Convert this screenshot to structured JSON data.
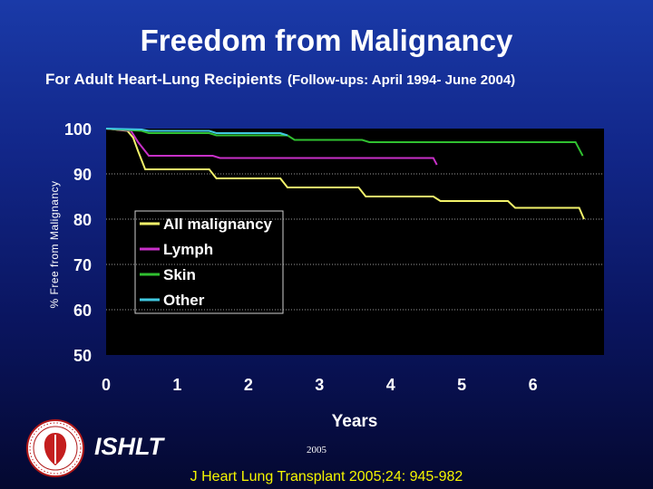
{
  "header": {
    "title": "Freedom from Malignancy",
    "subtitle": "For Adult Heart-Lung Recipients",
    "subtitle_note": "(Follow-ups: April 1994- June 2004)"
  },
  "footer": {
    "org": "ISHLT",
    "year": "2005",
    "citation": "J Heart Lung Transplant 2005;24: 945-982"
  },
  "chart_data": {
    "type": "line",
    "title": "Freedom from Malignancy",
    "xlabel": "Years",
    "ylabel": "% Free from Malignancy",
    "xlim": [
      0,
      7
    ],
    "ylim": [
      50,
      100
    ],
    "xticks": [
      0,
      1,
      2,
      3,
      4,
      5,
      6
    ],
    "yticks": [
      50,
      60,
      70,
      80,
      90,
      100
    ],
    "grid": "horizontal dotted",
    "legend": "inside left, middle",
    "background": "#000000",
    "series": [
      {
        "name": "All malignancy",
        "color": "#f2f26a",
        "step": true,
        "points": [
          [
            0,
            100
          ],
          [
            0.3,
            99.5
          ],
          [
            0.38,
            98
          ],
          [
            0.45,
            95
          ],
          [
            0.55,
            91
          ],
          [
            1.45,
            91
          ],
          [
            1.55,
            89
          ],
          [
            2.45,
            89
          ],
          [
            2.55,
            87
          ],
          [
            3.55,
            87
          ],
          [
            3.65,
            85
          ],
          [
            4.6,
            85
          ],
          [
            4.7,
            84
          ],
          [
            5.65,
            84
          ],
          [
            5.75,
            82.5
          ],
          [
            6.65,
            82.5
          ],
          [
            6.72,
            80
          ]
        ]
      },
      {
        "name": "Lymph",
        "color": "#c830c8",
        "step": true,
        "points": [
          [
            0,
            100
          ],
          [
            0.35,
            99.5
          ],
          [
            0.45,
            97
          ],
          [
            0.6,
            94
          ],
          [
            1.5,
            94
          ],
          [
            1.6,
            93.5
          ],
          [
            4.6,
            93.5
          ],
          [
            4.65,
            92
          ]
        ]
      },
      {
        "name": "Skin",
        "color": "#30c030",
        "step": true,
        "points": [
          [
            0,
            100
          ],
          [
            0.5,
            99.5
          ],
          [
            0.6,
            99
          ],
          [
            1.45,
            99
          ],
          [
            1.55,
            98.5
          ],
          [
            2.55,
            98.5
          ],
          [
            2.65,
            97.5
          ],
          [
            3.6,
            97.5
          ],
          [
            3.7,
            97
          ],
          [
            6.6,
            97
          ],
          [
            6.7,
            94
          ]
        ]
      },
      {
        "name": "Other",
        "color": "#40c8e0",
        "step": true,
        "points": [
          [
            0,
            100
          ],
          [
            0.5,
            99.8
          ],
          [
            0.6,
            99.5
          ],
          [
            1.45,
            99.5
          ],
          [
            1.55,
            99
          ],
          [
            2.45,
            99
          ],
          [
            2.55,
            98.5
          ]
        ]
      }
    ]
  }
}
